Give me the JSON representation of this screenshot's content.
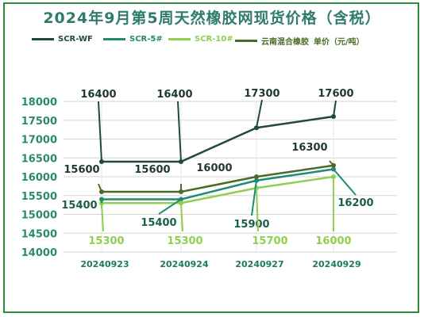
{
  "title": "2024年9月第5周天然橡胶网现货价格（含税）",
  "legend_unit": "单价（元/吨）",
  "chart_data": {
    "type": "line",
    "title": "2024年9月第5周天然橡胶网现货价格（含税）",
    "ylabel": "单价（元/吨）",
    "categories": [
      "20240923",
      "20240924",
      "20240927",
      "20240929"
    ],
    "ylim": [
      14000,
      18000
    ],
    "yticks": [
      14000,
      14500,
      15000,
      15500,
      16000,
      16500,
      17000,
      17500,
      18000
    ],
    "grid": true,
    "legend_position": "top",
    "series": [
      {
        "name": "SCR-WF",
        "color": "#1f4a35",
        "values": [
          16400,
          16400,
          17300,
          17600
        ]
      },
      {
        "name": "SCR-5#",
        "color": "#1e8a70",
        "values": [
          15400,
          15400,
          15900,
          16200
        ]
      },
      {
        "name": "SCR-10#",
        "color": "#8fcf4f",
        "values": [
          15300,
          15300,
          15700,
          16000
        ]
      },
      {
        "name": "云南混合橡胶",
        "color": "#4a6b25",
        "values": [
          15600,
          15600,
          16000,
          16300
        ]
      }
    ]
  }
}
